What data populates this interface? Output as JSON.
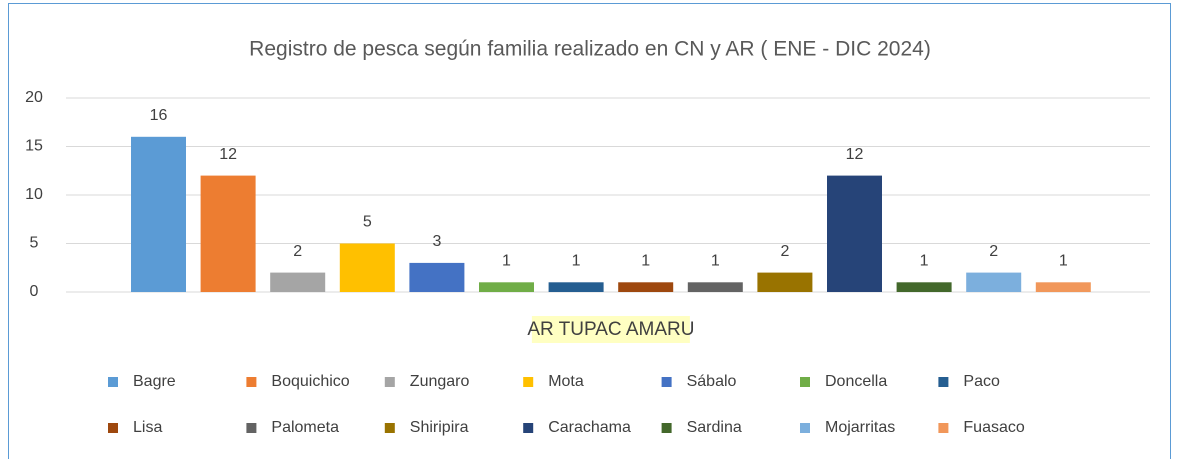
{
  "chart_data": {
    "type": "bar",
    "title": "Registro de pesca según familia realizado en CN y AR ( ENE - DIC 2024)",
    "categories": [
      "AR TUPAC AMARU"
    ],
    "series": [
      {
        "name": "Bagre",
        "color": "#5b9bd5",
        "values": [
          16
        ]
      },
      {
        "name": "Boquichico",
        "color": "#ed7d31",
        "values": [
          12
        ]
      },
      {
        "name": "Zungaro",
        "color": "#a5a5a5",
        "values": [
          2
        ]
      },
      {
        "name": "Mota",
        "color": "#ffc000",
        "values": [
          5
        ]
      },
      {
        "name": "Sábalo",
        "color": "#4472c4",
        "values": [
          3
        ]
      },
      {
        "name": "Doncella",
        "color": "#70ad47",
        "values": [
          1
        ]
      },
      {
        "name": "Paco",
        "color": "#255e91",
        "values": [
          1
        ]
      },
      {
        "name": "Lisa",
        "color": "#9e480e",
        "values": [
          1
        ]
      },
      {
        "name": "Palometa",
        "color": "#636363",
        "values": [
          1
        ]
      },
      {
        "name": "Shiripira",
        "color": "#997300",
        "values": [
          2
        ]
      },
      {
        "name": "Carachama",
        "color": "#264478",
        "values": [
          12
        ]
      },
      {
        "name": "Sardina",
        "color": "#43682b",
        "values": [
          1
        ]
      },
      {
        "name": "Mojarritas",
        "color": "#7cafdd",
        "values": [
          2
        ]
      },
      {
        "name": "Fuasaco",
        "color": "#f1975a",
        "values": [
          1
        ]
      }
    ],
    "ylim": [
      0,
      20
    ],
    "yticks": [
      0,
      5,
      10,
      15,
      20
    ],
    "grid": true,
    "legend": "bottom"
  }
}
